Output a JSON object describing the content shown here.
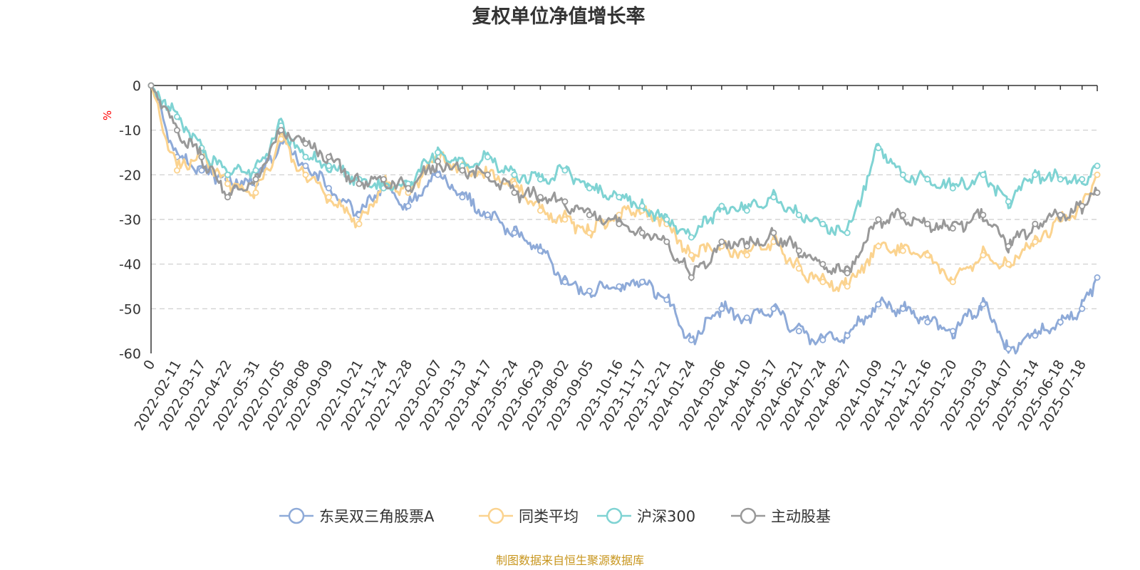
{
  "chart_data": {
    "type": "line",
    "title": "复权单位净值增长率",
    "ylabel": "%",
    "ylim": [
      -60,
      0
    ],
    "yticks": [
      0,
      -10,
      -20,
      -30,
      -40,
      -50,
      -60
    ],
    "grid": true,
    "legend_position": "bottom-center",
    "x_tick_labels": [
      "0",
      "2022-02-11",
      "2022-03-17",
      "2022-04-22",
      "2022-05-31",
      "2022-07-05",
      "2022-08-08",
      "2022-09-09",
      "2022-10-21",
      "2022-11-24",
      "2022-12-28",
      "2023-02-07",
      "2023-03-13",
      "2023-04-17",
      "2023-05-24",
      "2023-06-29",
      "2023-08-02",
      "2023-09-05",
      "2023-10-16",
      "2023-11-17",
      "2023-12-21",
      "2024-01-24",
      "2024-03-06",
      "2024-04-10",
      "2024-05-17",
      "2024-06-21",
      "2024-07-24",
      "2024-08-27",
      "2024-10-09",
      "2024-11-12",
      "2024-12-16",
      "2025-01-20",
      "2025-03-03",
      "2025-04-07",
      "2025-05-14",
      "2025-06-18",
      "2025-07-18"
    ],
    "x_dates": [
      "2022-01-06",
      "2022-02-11",
      "2022-03-17",
      "2022-04-22",
      "2022-05-31",
      "2022-07-05",
      "2022-08-08",
      "2022-09-09",
      "2022-10-21",
      "2022-11-24",
      "2022-12-28",
      "2023-02-07",
      "2023-03-13",
      "2023-04-17",
      "2023-05-24",
      "2023-06-29",
      "2023-08-02",
      "2023-09-05",
      "2023-10-16",
      "2023-11-17",
      "2023-12-21",
      "2024-01-24",
      "2024-03-06",
      "2024-04-10",
      "2024-05-17",
      "2024-06-21",
      "2024-07-24",
      "2024-08-27",
      "2024-10-09",
      "2024-11-12",
      "2024-12-16",
      "2025-01-20",
      "2025-03-03",
      "2025-04-07",
      "2025-05-14",
      "2025-06-18",
      "2025-07-18",
      "2025-08-08"
    ],
    "series": [
      {
        "name": "东吴双三角股票A",
        "color": "#8eaad8",
        "values": [
          0,
          -16,
          -19,
          -21,
          -22,
          -12,
          -18,
          -23,
          -29,
          -22,
          -27,
          -20,
          -25,
          -29,
          -33,
          -37,
          -44,
          -46,
          -45,
          -44,
          -48,
          -57,
          -50,
          -52,
          -50,
          -55,
          -57,
          -56,
          -49,
          -50,
          -53,
          -55,
          -49,
          -59,
          -56,
          -53,
          -50,
          -43
        ]
      },
      {
        "name": "同类平均",
        "color": "#fbd38f",
        "values": [
          0,
          -19,
          -15,
          -22,
          -24,
          -12,
          -20,
          -25,
          -31,
          -22,
          -24,
          -16,
          -19,
          -20,
          -22,
          -28,
          -30,
          -33,
          -29,
          -28,
          -31,
          -38,
          -36,
          -38,
          -35,
          -41,
          -44,
          -45,
          -36,
          -37,
          -38,
          -44,
          -38,
          -40,
          -35,
          -30,
          -27,
          -20
        ]
      },
      {
        "name": "沪深300",
        "color": "#7fd3d3",
        "values": [
          0,
          -7,
          -14,
          -20,
          -19,
          -9,
          -16,
          -18,
          -21,
          -23,
          -22,
          -15,
          -18,
          -16,
          -20,
          -21,
          -19,
          -23,
          -25,
          -27,
          -30,
          -34,
          -27,
          -28,
          -25,
          -29,
          -31,
          -33,
          -14,
          -20,
          -21,
          -23,
          -20,
          -26,
          -20,
          -21,
          -21,
          -18
        ]
      },
      {
        "name": "主动股基",
        "color": "#999999",
        "values": [
          0,
          -10,
          -16,
          -25,
          -21,
          -10,
          -13,
          -16,
          -22,
          -21,
          -23,
          -17,
          -19,
          -20,
          -24,
          -25,
          -26,
          -29,
          -31,
          -33,
          -35,
          -43,
          -35,
          -36,
          -33,
          -37,
          -40,
          -42,
          -30,
          -29,
          -31,
          -32,
          -29,
          -36,
          -31,
          -29,
          -27,
          -24
        ]
      }
    ]
  },
  "source": "制图数据来自恒生聚源数据库"
}
